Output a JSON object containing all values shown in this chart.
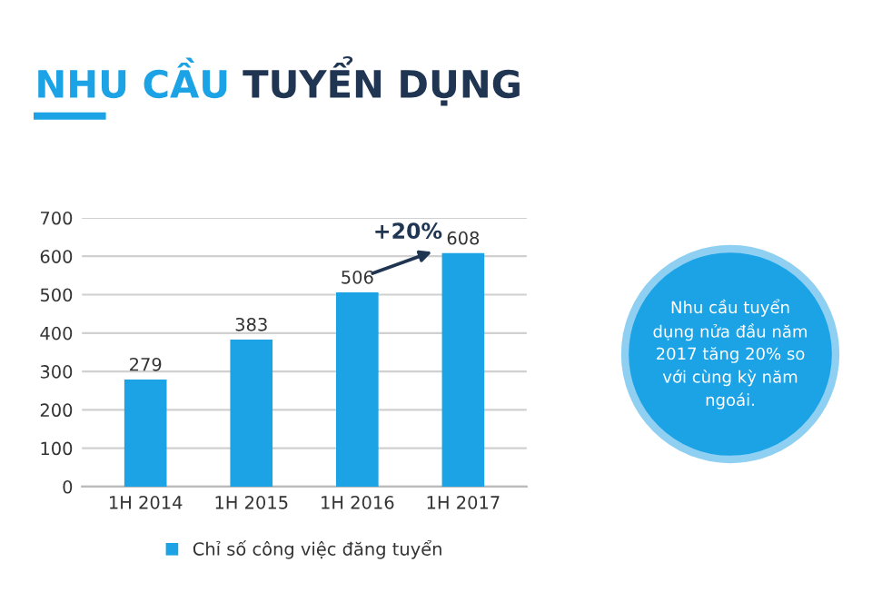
{
  "chart_data": {
    "type": "bar",
    "title": "NHU CẦU TUYỂN DỤNG",
    "categories": [
      "1H 2014",
      "1H 2015",
      "1H 2016",
      "1H 2017"
    ],
    "series": [
      {
        "name": "Chỉ số công việc đăng tuyển",
        "color": "#1ba3e6",
        "values": [
          279,
          383,
          506,
          608
        ]
      }
    ],
    "ylim": [
      0,
      700
    ],
    "yticks": [
      0,
      100,
      200,
      300,
      400,
      500,
      600,
      700
    ],
    "grid": "y",
    "legend": "bottom",
    "data_labels": true,
    "annotations": [
      {
        "text": "+20%",
        "x": "1H 2016",
        "y": 506
      },
      "Nhu cầu tuyển dụng nửa đầu năm 2017 tăng 20% so với cùng kỳ năm ngoái."
    ]
  }
}
